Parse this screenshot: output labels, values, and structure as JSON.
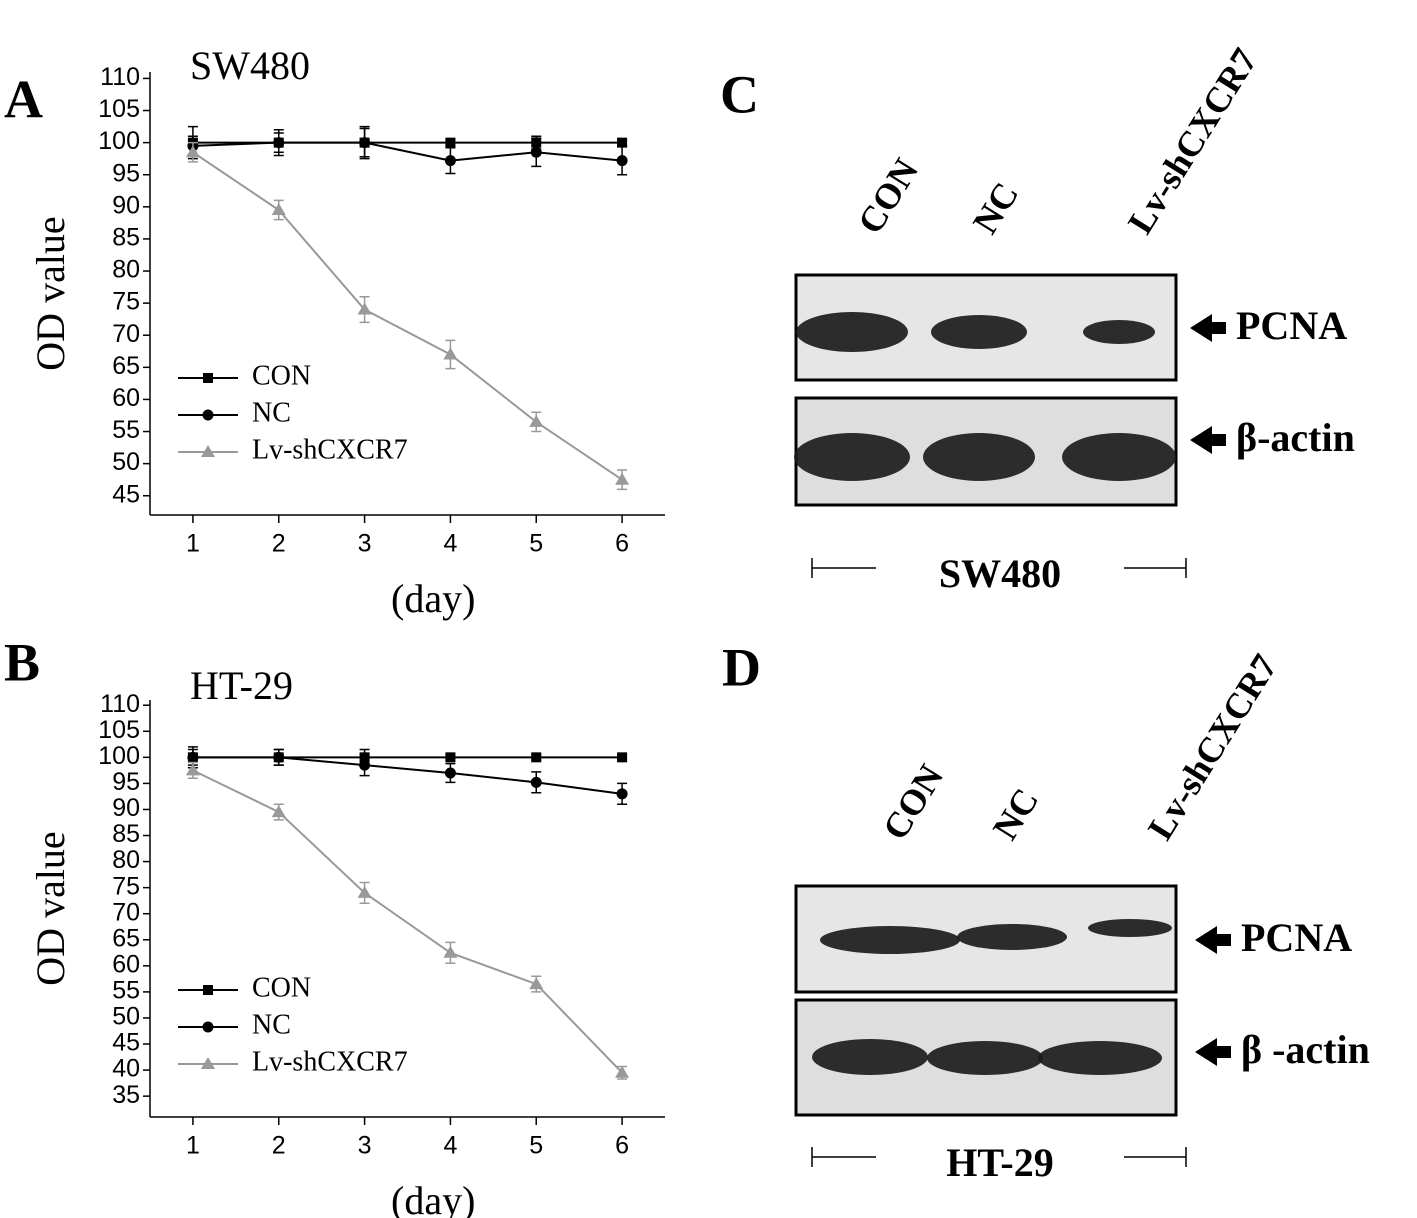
{
  "chart_data": [
    {
      "type": "line",
      "panel": "A",
      "title": "SW480",
      "x_label": "(day)",
      "y_label": "OD value",
      "x": [
        1,
        2,
        3,
        4,
        5,
        6
      ],
      "xlim": [
        0.5,
        6.5
      ],
      "xticks": [
        1,
        2,
        3,
        4,
        5,
        6
      ],
      "ylim": [
        42,
        111
      ],
      "yticks": [
        45,
        50,
        55,
        60,
        65,
        70,
        75,
        80,
        85,
        90,
        95,
        100,
        105,
        110
      ],
      "series": [
        {
          "name": "CON",
          "color": "#000000",
          "marker": "square",
          "values": [
            100,
            100,
            100,
            100,
            100,
            100
          ],
          "errors": [
            2.5,
            2,
            2.2,
            0.5,
            1,
            0.5
          ]
        },
        {
          "name": "NC",
          "color": "#000000",
          "marker": "circle",
          "values": [
            99.5,
            100,
            100,
            97.2,
            98.5,
            97.2
          ],
          "errors": [
            1.5,
            1.5,
            2.5,
            2,
            2.2,
            2.2
          ]
        },
        {
          "name": "Lv-shCXCR7",
          "color": "#999999",
          "marker": "triangle",
          "values": [
            98.5,
            89.5,
            74,
            67,
            56.5,
            47.5
          ],
          "errors": [
            1.5,
            1.5,
            2,
            2.2,
            1.5,
            1.5
          ]
        }
      ]
    },
    {
      "type": "line",
      "panel": "B",
      "title": "HT-29",
      "x_label": "(day)",
      "y_label": "OD value",
      "x": [
        1,
        2,
        3,
        4,
        5,
        6
      ],
      "xlim": [
        0.5,
        6.5
      ],
      "xticks": [
        1,
        2,
        3,
        4,
        5,
        6
      ],
      "ylim": [
        31,
        111
      ],
      "yticks": [
        35,
        40,
        45,
        50,
        55,
        60,
        65,
        70,
        75,
        80,
        85,
        90,
        95,
        100,
        105,
        110
      ],
      "series": [
        {
          "name": "CON",
          "color": "#000000",
          "marker": "square",
          "values": [
            100,
            100,
            100,
            100,
            100,
            100
          ],
          "errors": [
            2,
            1.5,
            1.5,
            0.5,
            0.5,
            0.5
          ]
        },
        {
          "name": "NC",
          "color": "#000000",
          "marker": "circle",
          "values": [
            100,
            100,
            98.5,
            97,
            95.2,
            93
          ],
          "errors": [
            1.5,
            1.5,
            2,
            1.8,
            2,
            2
          ]
        },
        {
          "name": "Lv-shCXCR7",
          "color": "#999999",
          "marker": "triangle",
          "values": [
            97.5,
            89.5,
            74,
            62.5,
            56.5,
            39.5
          ],
          "errors": [
            1.5,
            1.5,
            2,
            2,
            1.5,
            1.2
          ]
        }
      ]
    }
  ],
  "blots": [
    {
      "panel": "C",
      "lanes": [
        "CON",
        "NC",
        "Lv-shCXCR7"
      ],
      "bands": [
        "PCNA",
        "β-actin"
      ],
      "cell_line": "SW480"
    },
    {
      "panel": "D",
      "lanes": [
        "CON",
        "NC",
        "Lv-shCXCR7"
      ],
      "bands": [
        "PCNA",
        "β -actin"
      ],
      "cell_line": "HT-29"
    }
  ]
}
